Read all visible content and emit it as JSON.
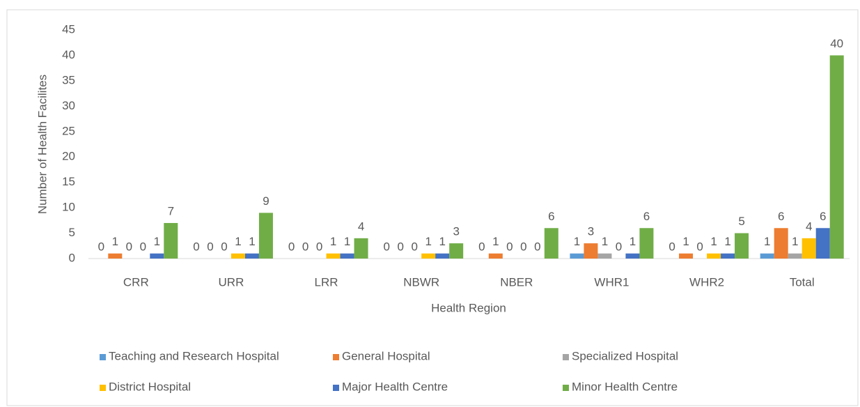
{
  "chart_data": {
    "type": "bar",
    "categories": [
      "CRR",
      "URR",
      "LRR",
      "NBWR",
      "NBER",
      "WHR1",
      "WHR2",
      "Total"
    ],
    "series": [
      {
        "name": "Teaching and Research Hospital",
        "color": "#5b9bd5",
        "values": [
          0,
          0,
          0,
          0,
          0,
          1,
          0,
          1
        ]
      },
      {
        "name": "General Hospital",
        "color": "#ed7d31",
        "values": [
          1,
          0,
          0,
          0,
          1,
          3,
          1,
          6
        ]
      },
      {
        "name": "Specialized Hospital",
        "color": "#a5a5a5",
        "values": [
          0,
          0,
          0,
          0,
          0,
          1,
          0,
          1
        ]
      },
      {
        "name": "District Hospital",
        "color": "#ffc000",
        "values": [
          0,
          1,
          1,
          1,
          0,
          0,
          1,
          4
        ]
      },
      {
        "name": "Major Health Centre",
        "color": "#4472c4",
        "values": [
          1,
          1,
          1,
          1,
          0,
          1,
          1,
          6
        ]
      },
      {
        "name": "Minor Health Centre",
        "color": "#70ad47",
        "values": [
          7,
          9,
          4,
          3,
          6,
          6,
          5,
          40
        ]
      }
    ],
    "x_label": "Health Region",
    "y_label": "Number of Health Facilites",
    "ylim": [
      0,
      45
    ],
    "yticks": [
      0,
      5,
      10,
      15,
      20,
      25,
      30,
      35,
      40,
      45
    ],
    "grid": false,
    "legend": "bottom"
  }
}
